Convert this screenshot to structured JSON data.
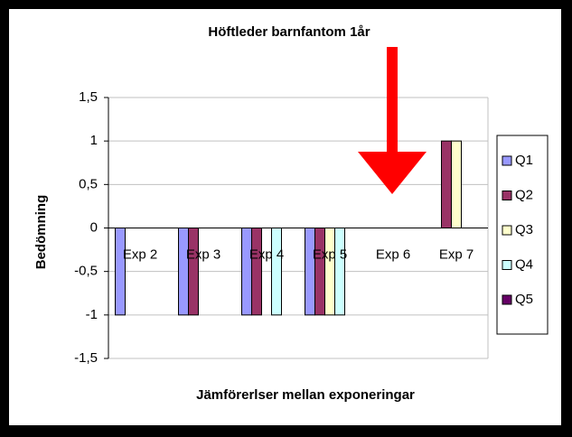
{
  "chart_data": {
    "type": "bar",
    "title": "Höftleder barnfantom 1år",
    "y_label": "Bedömning",
    "x_label": "Jämförerlser mellan exponeringar",
    "categories": [
      "Exp 2",
      "Exp 3",
      "Exp 4",
      "Exp 5",
      "Exp 6",
      "Exp 7"
    ],
    "series": [
      {
        "name": "Q1",
        "color": "#9999ff",
        "values": [
          -1,
          -1,
          -1,
          -1,
          0,
          0
        ]
      },
      {
        "name": "Q2",
        "color": "#993366",
        "values": [
          0,
          -1,
          -1,
          -1,
          0,
          1
        ]
      },
      {
        "name": "Q3",
        "color": "#ffffcc",
        "values": [
          0,
          0,
          0,
          -1,
          0,
          1
        ]
      },
      {
        "name": "Q4",
        "color": "#ccffff",
        "values": [
          0,
          0,
          -1,
          -1,
          0,
          0
        ]
      },
      {
        "name": "Q5",
        "color": "#660066",
        "values": [
          0,
          0,
          0,
          0,
          0,
          0
        ]
      }
    ],
    "ylim": [
      -1.5,
      1.5
    ],
    "yticks": [
      {
        "value": -1.5,
        "label": "-1,5"
      },
      -1,
      {
        "value": -0.5,
        "label": "-0,5"
      },
      0,
      {
        "value": 0.5,
        "label": "0,5"
      },
      1,
      {
        "value": 1.5,
        "label": "1,5"
      }
    ],
    "grid": true,
    "legend": "right"
  }
}
